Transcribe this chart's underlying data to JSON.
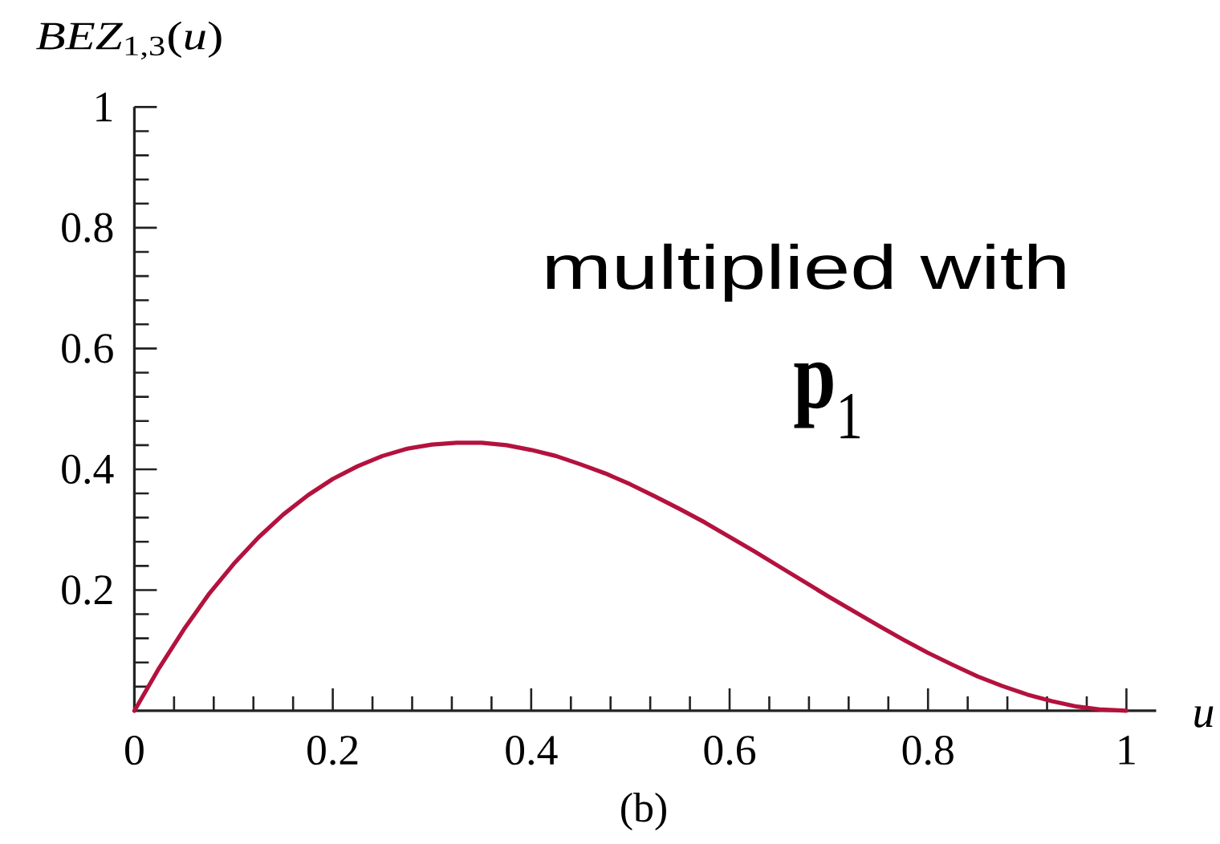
{
  "chart_data": {
    "type": "line",
    "xlabel": "u",
    "ylabel": "*BEZ*$_{1,3}$(*u*)",
    "annotations": [
      "multiplied with",
      "**p**$_{1}$",
      "(b)"
    ],
    "x": [
      0,
      0.025,
      0.05,
      0.075,
      0.1,
      0.125,
      0.15,
      0.175,
      0.2,
      0.225,
      0.25,
      0.275,
      0.3,
      0.325,
      0.35,
      0.375,
      0.4,
      0.425,
      0.45,
      0.475,
      0.5,
      0.525,
      0.55,
      0.575,
      0.6,
      0.625,
      0.65,
      0.675,
      0.7,
      0.725,
      0.75,
      0.775,
      0.8,
      0.825,
      0.85,
      0.875,
      0.9,
      0.925,
      0.95,
      0.975,
      1
    ],
    "series": [
      {
        "color": "#b4123e",
        "values": [
          0,
          0.071,
          0.135,
          0.193,
          0.243,
          0.287,
          0.325,
          0.357,
          0.384,
          0.405,
          0.422,
          0.434,
          0.441,
          0.444,
          0.444,
          0.44,
          0.432,
          0.422,
          0.408,
          0.393,
          0.375,
          0.355,
          0.334,
          0.312,
          0.288,
          0.264,
          0.239,
          0.214,
          0.189,
          0.165,
          0.141,
          0.118,
          0.096,
          0.076,
          0.057,
          0.041,
          0.027,
          0.016,
          0.007,
          0.002,
          0
        ]
      }
    ],
    "xlim": [
      0,
      1.03
    ],
    "ylim": [
      0,
      1
    ],
    "xticks": [
      0,
      {
        "value": 0.04,
        "label": null
      },
      {
        "value": 0.08,
        "label": null
      },
      {
        "value": 0.12,
        "label": null
      },
      {
        "value": 0.16,
        "label": null
      },
      0.2,
      {
        "value": 0.24,
        "label": null
      },
      {
        "value": 0.28,
        "label": null
      },
      {
        "value": 0.32,
        "label": null
      },
      {
        "value": 0.36,
        "label": null
      },
      0.4,
      {
        "value": 0.44,
        "label": null
      },
      {
        "value": 0.48,
        "label": null
      },
      {
        "value": 0.52,
        "label": null
      },
      {
        "value": 0.56,
        "label": null
      },
      0.6,
      {
        "value": 0.64,
        "label": null
      },
      {
        "value": 0.68,
        "label": null
      },
      {
        "value": 0.72,
        "label": null
      },
      {
        "value": 0.76,
        "label": null
      },
      0.8,
      {
        "value": 0.84,
        "label": null
      },
      {
        "value": 0.88,
        "label": null
      },
      {
        "value": 0.92,
        "label": null
      },
      {
        "value": 0.96,
        "label": null
      },
      1
    ],
    "yticks": [
      {
        "value": 0.04,
        "label": null
      },
      {
        "value": 0.08,
        "label": null
      },
      {
        "value": 0.12,
        "label": null
      },
      {
        "value": 0.16,
        "label": null
      },
      0.2,
      {
        "value": 0.24,
        "label": null
      },
      {
        "value": 0.28,
        "label": null
      },
      {
        "value": 0.32,
        "label": null
      },
      {
        "value": 0.36,
        "label": null
      },
      0.4,
      {
        "value": 0.44,
        "label": null
      },
      {
        "value": 0.48,
        "label": null
      },
      {
        "value": 0.52,
        "label": null
      },
      {
        "value": 0.56,
        "label": null
      },
      0.6,
      {
        "value": 0.64,
        "label": null
      },
      {
        "value": 0.68,
        "label": null
      },
      {
        "value": 0.72,
        "label": null
      },
      {
        "value": 0.76,
        "label": null
      },
      0.8,
      {
        "value": 0.84,
        "label": null
      },
      {
        "value": 0.88,
        "label": null
      },
      {
        "value": 0.92,
        "label": null
      },
      {
        "value": 0.96,
        "label": null
      },
      1
    ],
    "line_style": "solid"
  }
}
